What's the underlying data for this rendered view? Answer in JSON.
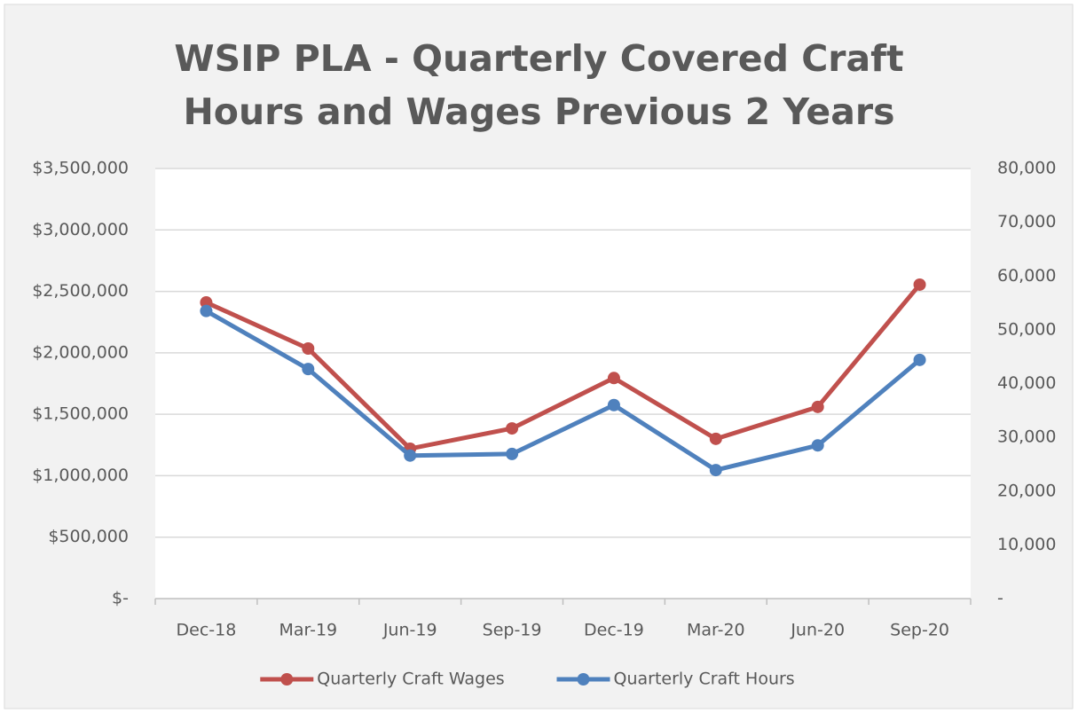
{
  "chart_data": {
    "type": "line",
    "title": "WSIP PLA - Quarterly Covered Craft Hours and Wages Previous 2 Years",
    "categories": [
      "Dec-18",
      "Mar-19",
      "Jun-19",
      "Sep-19",
      "Dec-19",
      "Mar-20",
      "Jun-20",
      "Sep-20"
    ],
    "series": [
      {
        "name": "Quarterly Craft Wages",
        "color": "#c0504d",
        "axis": "y",
        "values": [
          2410000,
          2035000,
          1220000,
          1385000,
          1795000,
          1300000,
          1560000,
          2555000
        ]
      },
      {
        "name": "Quarterly Craft Hours",
        "color": "#4f81bd",
        "axis": "y2",
        "values": [
          53500,
          42700,
          26600,
          26900,
          36000,
          23900,
          28500,
          44400
        ]
      }
    ],
    "ylim": [
      0,
      3500000
    ],
    "yticks": [
      {
        "value": 0,
        "label": "$-"
      },
      {
        "value": 500000,
        "label": "$500,000"
      },
      {
        "value": 1000000,
        "label": "$1,000,000"
      },
      {
        "value": 1500000,
        "label": "$1,500,000"
      },
      {
        "value": 2000000,
        "label": "$2,000,000"
      },
      {
        "value": 2500000,
        "label": "$2,500,000"
      },
      {
        "value": 3000000,
        "label": "$3,000,000"
      },
      {
        "value": 3500000,
        "label": "$3,500,000"
      }
    ],
    "y2lim": [
      0,
      80000
    ],
    "y2ticks": [
      {
        "value": 0,
        "label": "-"
      },
      {
        "value": 10000,
        "label": "10,000"
      },
      {
        "value": 20000,
        "label": "20,000"
      },
      {
        "value": 30000,
        "label": "30,000"
      },
      {
        "value": 40000,
        "label": "40,000"
      },
      {
        "value": 50000,
        "label": "50,000"
      },
      {
        "value": 60000,
        "label": "60,000"
      },
      {
        "value": 70000,
        "label": "70,000"
      },
      {
        "value": 80000,
        "label": "80,000"
      }
    ],
    "grid": true,
    "legend": "bottom"
  }
}
